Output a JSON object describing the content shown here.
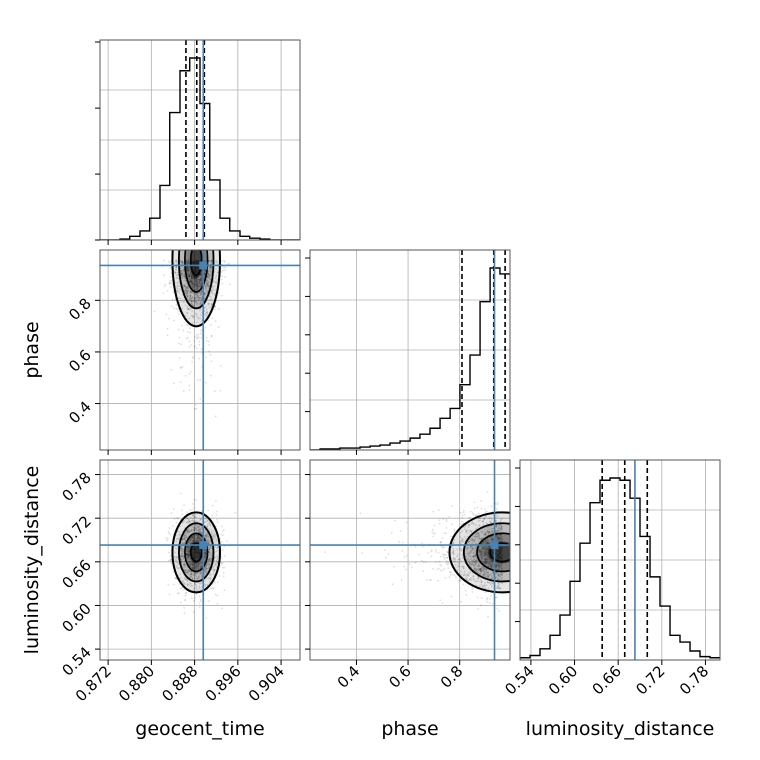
{
  "chart_data": {
    "type": "corner",
    "parameters": [
      "geocent_time",
      "phase",
      "luminosity_distance"
    ],
    "axis_labels": {
      "geocent_time": "geocent_time",
      "phase": "phase",
      "luminosity_distance": "luminosity_distance"
    },
    "ranges": {
      "geocent_time": [
        0.8705,
        0.9075
      ],
      "phase": [
        0.22,
        0.995
      ],
      "luminosity_distance": [
        0.525,
        0.8
      ]
    },
    "ticks": {
      "geocent_time": [
        "0.872",
        "0.880",
        "0.888",
        "0.896",
        "0.904"
      ],
      "phase": [
        "0.4",
        "0.6",
        "0.8"
      ],
      "luminosity_distance": [
        "0.54",
        "0.60",
        "0.66",
        "0.72",
        "0.78"
      ]
    },
    "truths": {
      "geocent_time": 0.8896,
      "phase": 0.935,
      "luminosity_distance": 0.683
    },
    "quantiles": {
      "geocent_time": [
        0.8864,
        0.8884,
        0.8898
      ],
      "phase": [
        0.809,
        0.932,
        0.976
      ],
      "luminosity_distance": [
        0.638,
        0.669,
        0.7
      ]
    },
    "histograms": {
      "geocent_time": {
        "edges": [
          0.8705,
          0.8723,
          0.8742,
          0.876,
          0.8779,
          0.8797,
          0.8816,
          0.8834,
          0.8853,
          0.8871,
          0.889,
          0.8908,
          0.8927,
          0.8945,
          0.8964,
          0.8982,
          0.9001,
          0.9019,
          0.9038,
          0.9056,
          0.9075
        ],
        "counts": [
          0.0,
          0.0,
          0.005,
          0.02,
          0.05,
          0.12,
          0.3,
          0.7,
          0.93,
          1.0,
          0.75,
          0.33,
          0.12,
          0.05,
          0.02,
          0.01,
          0.005,
          0.0,
          0.0,
          0.0
        ]
      },
      "phase": {
        "edges": [
          0.22,
          0.259,
          0.298,
          0.336,
          0.375,
          0.414,
          0.453,
          0.491,
          0.53,
          0.569,
          0.608,
          0.646,
          0.685,
          0.724,
          0.763,
          0.801,
          0.84,
          0.879,
          0.918,
          0.956,
          0.995
        ],
        "counts": [
          0.0,
          0.005,
          0.005,
          0.01,
          0.01,
          0.015,
          0.02,
          0.025,
          0.035,
          0.045,
          0.06,
          0.08,
          0.11,
          0.16,
          0.21,
          0.33,
          0.48,
          0.75,
          0.92,
          0.89
        ]
      },
      "luminosity_distance": {
        "edges": [
          0.525,
          0.5388,
          0.5525,
          0.5663,
          0.58,
          0.5938,
          0.6075,
          0.6213,
          0.635,
          0.6488,
          0.6625,
          0.6763,
          0.69,
          0.7038,
          0.7175,
          0.7313,
          0.745,
          0.7588,
          0.7725,
          0.7863,
          0.8
        ],
        "counts": [
          0.01,
          0.02,
          0.05,
          0.11,
          0.2,
          0.35,
          0.52,
          0.7,
          0.8,
          0.81,
          0.8,
          0.72,
          0.55,
          0.37,
          0.24,
          0.11,
          0.08,
          0.04,
          0.015,
          0.01
        ]
      }
    },
    "pairs": [
      {
        "x": "geocent_time",
        "y": "phase",
        "center": [
          0.8883,
          0.955
        ],
        "spread": [
          0.002,
          0.055
        ],
        "clip_top": true
      },
      {
        "x": "geocent_time",
        "y": "luminosity_distance",
        "center": [
          0.8883,
          0.673
        ],
        "spread": [
          0.002,
          0.025
        ],
        "clip_top": false
      },
      {
        "x": "phase",
        "y": "luminosity_distance",
        "center": [
          0.965,
          0.673
        ],
        "spread": [
          0.055,
          0.025
        ],
        "clip_right": true
      }
    ],
    "grid": true,
    "truth_color": "#4682b4",
    "line_color": "#000000",
    "density_color": "#000000"
  }
}
